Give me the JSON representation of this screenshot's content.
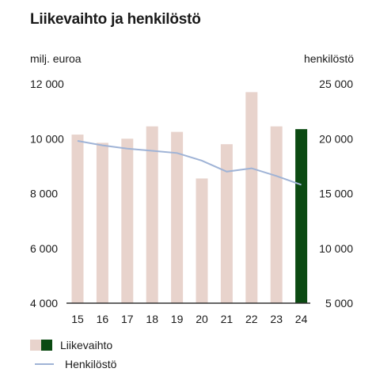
{
  "chart_data": {
    "type": "bar",
    "title": "Liikevaihto ja henkilöstö",
    "ylabel_left": "milj. euroa",
    "ylabel_right": "henkilöstö",
    "categories": [
      "15",
      "16",
      "17",
      "18",
      "19",
      "20",
      "21",
      "22",
      "23",
      "24"
    ],
    "ylim_left": [
      4000,
      12000
    ],
    "yticks_left": [
      "4 000",
      "6 000",
      "8 000",
      "10 000",
      "12 000"
    ],
    "ylim_right": [
      5000,
      25000
    ],
    "yticks_right": [
      "5 000",
      "10 000",
      "15 000",
      "20 000",
      "25 000"
    ],
    "series": [
      {
        "name": "Liikevaihto",
        "axis": "left",
        "type": "bar",
        "values": [
          10150,
          9850,
          10000,
          10450,
          10250,
          8550,
          9800,
          11700,
          10450,
          10350
        ],
        "highlight_index": 9
      },
      {
        "name": "Henkilöstö",
        "axis": "right",
        "type": "line",
        "values": [
          19800,
          19400,
          19100,
          18900,
          18700,
          18000,
          17000,
          17300,
          16600,
          15800
        ]
      }
    ],
    "colors": {
      "bar": "#e8d3cc",
      "bar_highlight": "#0b4a12",
      "line": "#9fb3d6",
      "axis": "#333333"
    },
    "grid": false,
    "legend_position": "bottom-left"
  }
}
